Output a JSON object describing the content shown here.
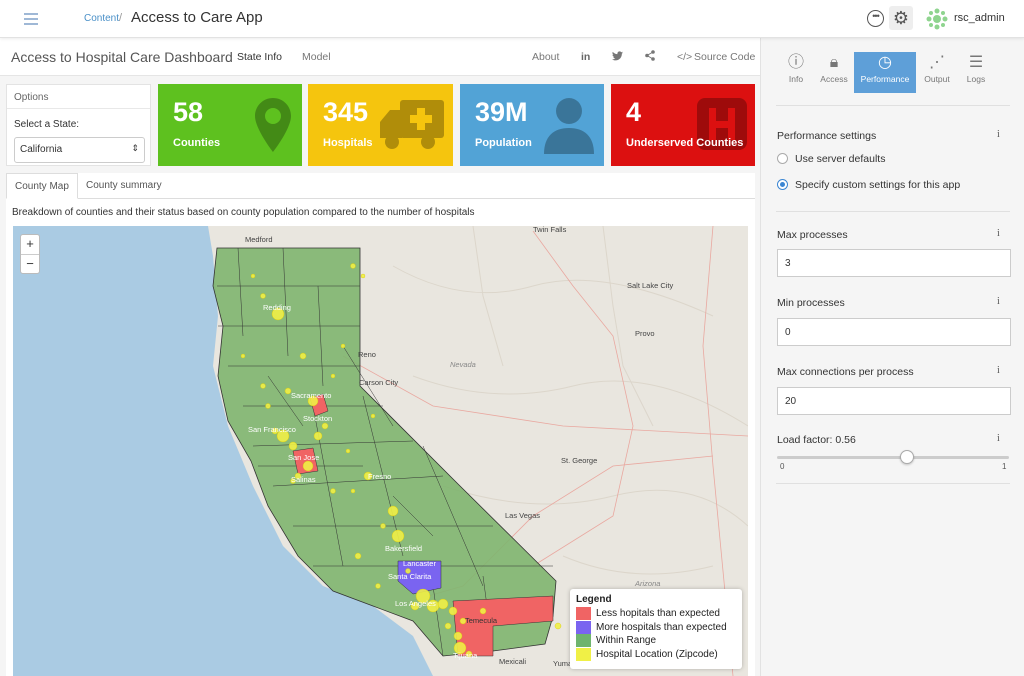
{
  "topbar": {
    "breadcrumb": "Content",
    "separator": "/",
    "app_title": "Access to Care App",
    "user": "rsc_admin"
  },
  "dashboard": {
    "title": "Access to Hospital Care Dashboard",
    "nav": [
      "State Info",
      "Model"
    ],
    "about": "About",
    "source_code": "Source Code"
  },
  "options": {
    "header": "Options",
    "label": "Select a State:",
    "selected": "California"
  },
  "value_boxes": [
    {
      "value": "58",
      "label": "Counties",
      "color": "#5ec11f",
      "icon": "map-marker-icon"
    },
    {
      "value": "345",
      "label": "Hospitals",
      "color": "#f5c50e",
      "icon": "ambulance-icon"
    },
    {
      "value": "39M",
      "label": "Population",
      "color": "#52a3d6",
      "icon": "user-icon"
    },
    {
      "value": "4",
      "label": "Underserved Counties",
      "color": "#dc1010",
      "icon": "hospital-icon"
    }
  ],
  "tabs": [
    "County Map",
    "County summary"
  ],
  "map": {
    "description": "Breakdown of counties and their status based on county population compared to the number of hospitals",
    "zoom_in": "+",
    "zoom_out": "−",
    "places": [
      "Medford",
      "Twin Falls",
      "Redding",
      "Reno",
      "Carson City",
      "Sacramento",
      "Stockton",
      "San Francisco",
      "San Jose",
      "Fresno",
      "Salinas",
      "Bakersfield",
      "Lancaster",
      "Santa Clarita",
      "Los Angeles",
      "Temecula",
      "Tijuana",
      "Mexicali",
      "Yuma",
      "Las Vegas",
      "St. George",
      "Nevada",
      "Arizona",
      "Salt Lake City",
      "Provo"
    ],
    "legend": {
      "title": "Legend",
      "items": [
        {
          "label": "Less hopitals than expected",
          "color": "#f06464"
        },
        {
          "label": "More hospitals than expected",
          "color": "#7a64f0"
        },
        {
          "label": "Within Range",
          "color": "#6eb46e"
        },
        {
          "label": "Hospital Location (Zipcode)",
          "color": "#f0f046"
        }
      ]
    }
  },
  "settings": {
    "tabs": [
      "Info",
      "Access",
      "Performance",
      "Output",
      "Logs"
    ],
    "active_tab": "Performance",
    "section_title": "Performance settings",
    "radio_options": [
      "Use server defaults",
      "Specify custom settings for this app"
    ],
    "selected_radio": 1,
    "max_processes_label": "Max processes",
    "max_processes": "3",
    "min_processes_label": "Min processes",
    "min_processes": "0",
    "max_connections_label": "Max connections per process",
    "max_connections": "20",
    "load_factor_label": "Load factor: 0.56",
    "load_factor": 0.56,
    "slider_min": "0",
    "slider_max": "1",
    "info_glyph": "i"
  }
}
